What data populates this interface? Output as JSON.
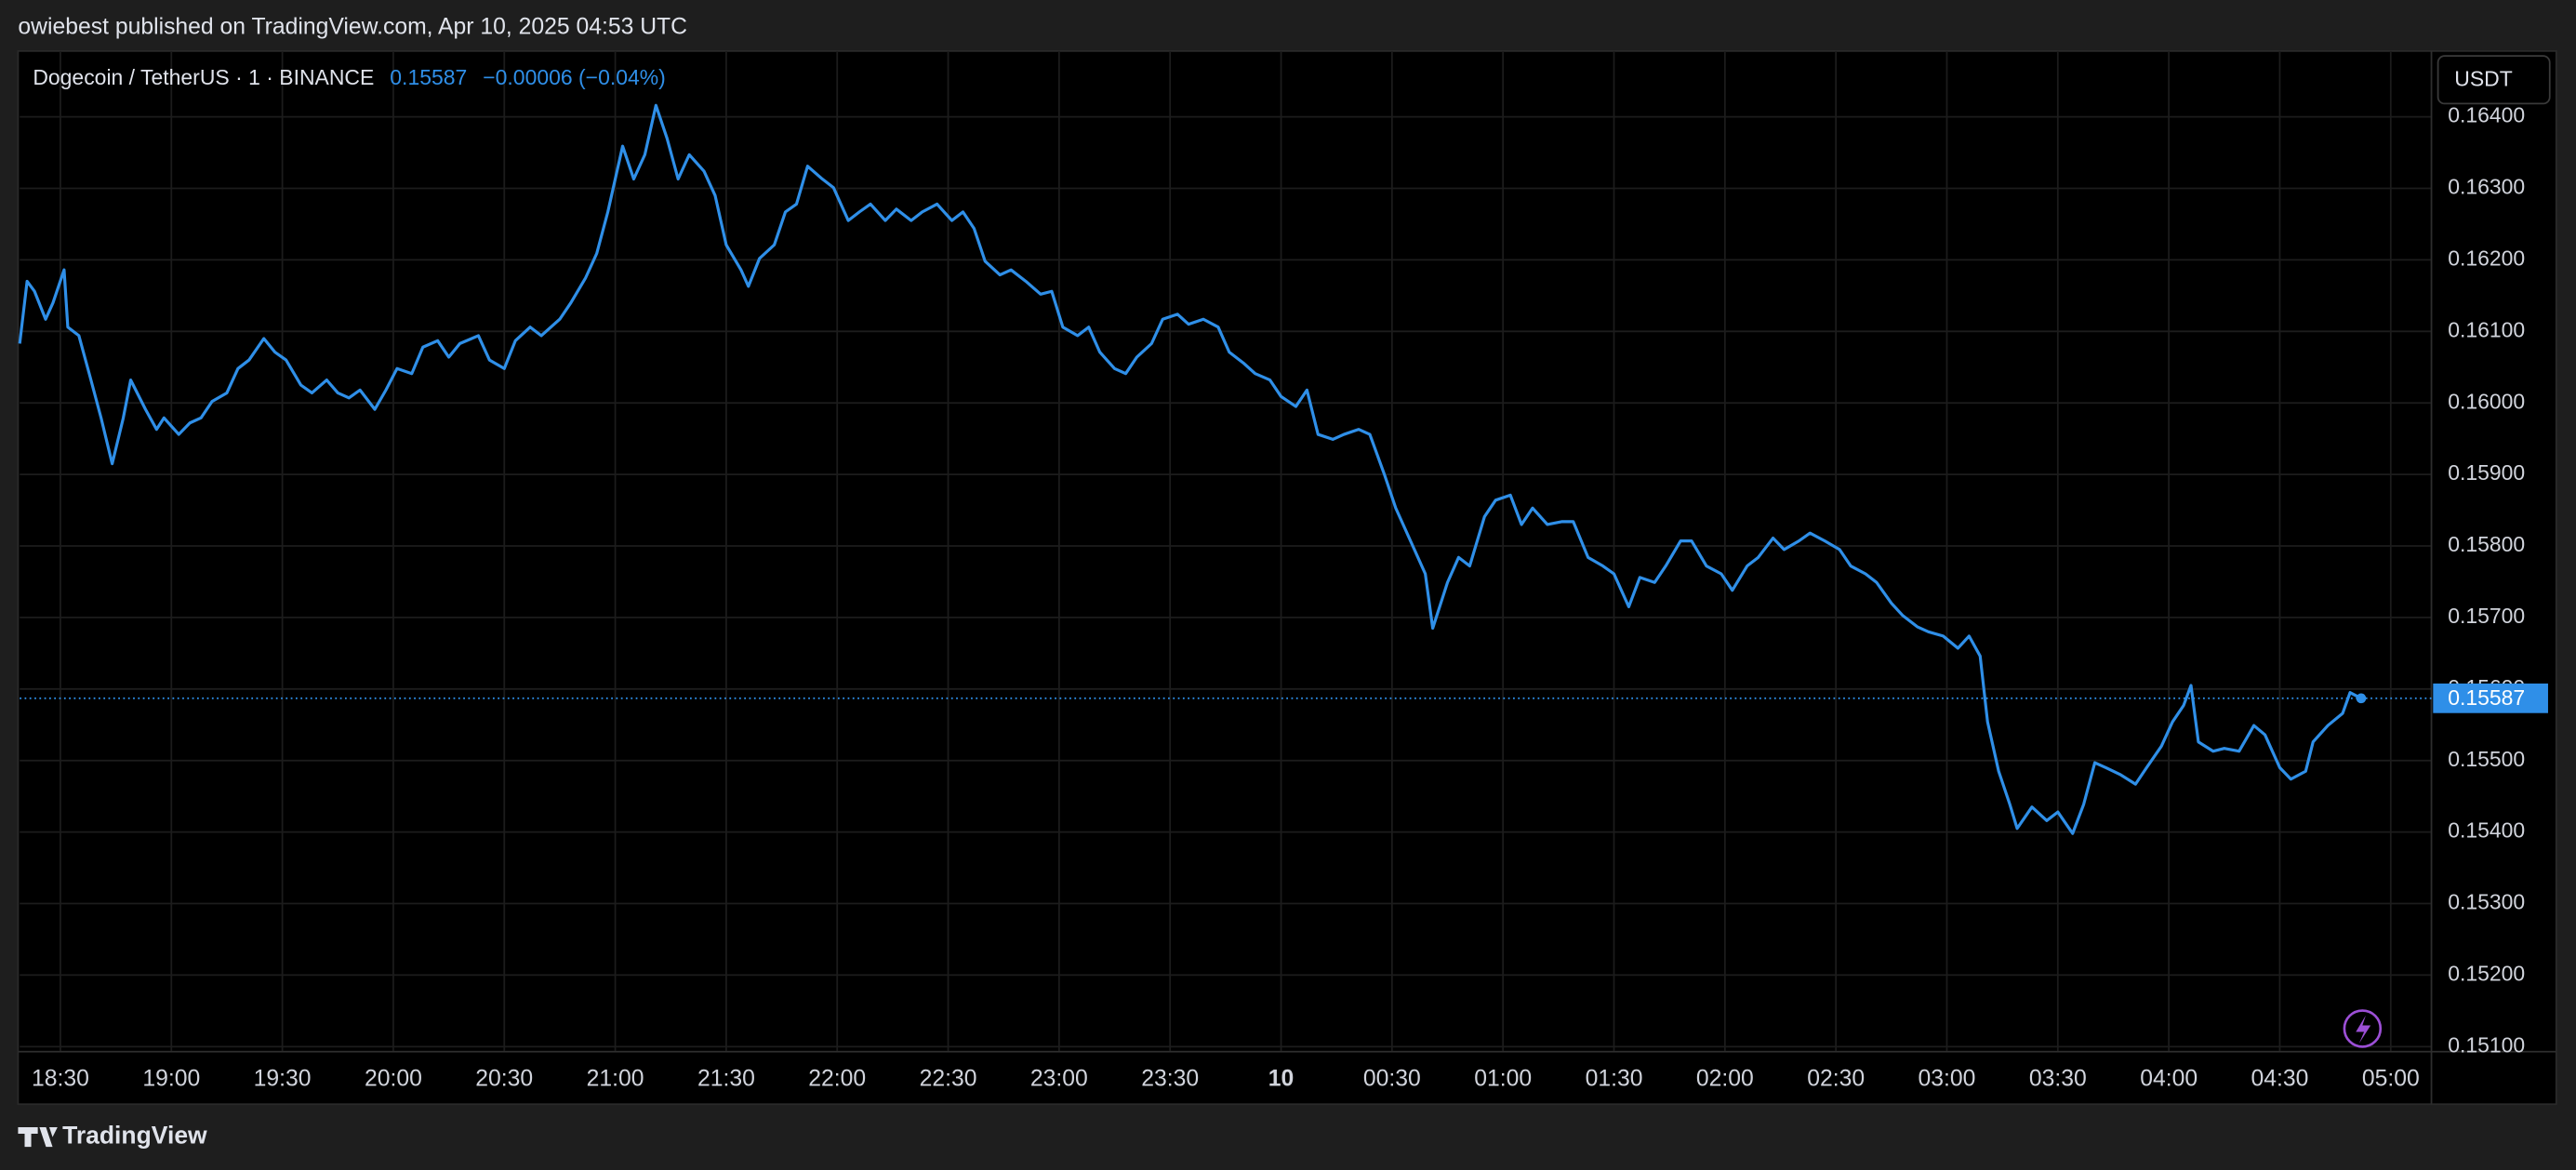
{
  "page": {
    "publisher_line": "owiebest published on TradingView.com, Apr 10, 2025 04:53 UTC",
    "brand": "TradingView"
  },
  "chart_data": {
    "type": "line",
    "title": "Dogecoin / TetherUS · 1 · BINANCE",
    "last_value": 0.15587,
    "change": "−0.00006 (−0.04%)",
    "currency": "USDT",
    "color": "#2f8fe8",
    "grid": true,
    "x": [
      "18:19",
      "18:21",
      "18:23",
      "18:26",
      "18:28",
      "18:31",
      "18:32",
      "18:35",
      "18:38",
      "18:41",
      "18:44",
      "18:47",
      "18:49",
      "18:53",
      "18:56",
      "18:58",
      "19:02",
      "19:05",
      "19:08",
      "19:11",
      "19:15",
      "19:18",
      "19:21",
      "19:25",
      "19:28",
      "19:31",
      "19:35",
      "19:38",
      "19:42",
      "19:45",
      "19:48",
      "19:51",
      "19:55",
      "19:58",
      "20:01",
      "20:05",
      "20:08",
      "20:12",
      "20:15",
      "20:18",
      "20:23",
      "20:26",
      "20:30",
      "20:33",
      "20:37",
      "20:40",
      "20:45",
      "20:48",
      "20:52",
      "20:55",
      "20:58",
      "21:02",
      "21:05",
      "21:08",
      "21:11",
      "21:14",
      "21:17",
      "21:20",
      "21:24",
      "21:27",
      "21:30",
      "21:34",
      "21:36",
      "21:39",
      "21:43",
      "21:46",
      "21:49",
      "21:52",
      "21:56",
      "21:59",
      "22:03",
      "22:06",
      "22:09",
      "22:13",
      "22:16",
      "22:20",
      "22:23",
      "22:27",
      "22:31",
      "22:34",
      "22:37",
      "22:40",
      "22:44",
      "22:47",
      "22:51",
      "22:55",
      "22:58",
      "23:01",
      "23:05",
      "23:08",
      "23:11",
      "23:15",
      "23:18",
      "23:21",
      "23:25",
      "23:28",
      "23:32",
      "23:35",
      "23:39",
      "23:43",
      "23:46",
      "23:50",
      "23:53",
      "23:57",
      "00:00",
      "00:04",
      "00:07",
      "00:10",
      "00:14",
      "00:17",
      "00:21",
      "00:24",
      "00:28",
      "00:31",
      "00:35",
      "00:39",
      "00:41",
      "00:45",
      "00:48",
      "00:51",
      "00:55",
      "00:58",
      "01:02",
      "01:05",
      "01:08",
      "01:12",
      "01:16",
      "01:19",
      "01:23",
      "01:27",
      "01:30",
      "01:34",
      "01:37",
      "01:41",
      "01:44",
      "01:48",
      "01:51",
      "01:55",
      "01:59",
      "02:02",
      "02:06",
      "02:09",
      "02:13",
      "02:16",
      "02:20",
      "02:23",
      "02:27",
      "02:31",
      "02:34",
      "02:38",
      "02:41",
      "02:45",
      "02:48",
      "02:52",
      "02:55",
      "02:59",
      "03:03",
      "03:06",
      "03:09",
      "03:11",
      "03:14",
      "03:17",
      "03:19",
      "03:23",
      "03:27",
      "03:30",
      "03:34",
      "03:37",
      "03:40",
      "03:43",
      "03:47",
      "03:51",
      "03:54",
      "03:58",
      "04:01",
      "04:04",
      "04:06",
      "04:08",
      "04:12",
      "04:15",
      "04:19",
      "04:23",
      "04:26",
      "04:30",
      "04:33",
      "04:37",
      "04:39",
      "04:43",
      "04:47",
      "04:49",
      "04:52"
    ],
    "values": [
      0.16083,
      0.1617,
      0.16156,
      0.16117,
      0.1614,
      0.16186,
      0.16106,
      0.16094,
      0.16037,
      0.15979,
      0.15915,
      0.15979,
      0.16032,
      0.15991,
      0.15963,
      0.15979,
      0.15956,
      0.15972,
      0.15979,
      0.16002,
      0.16014,
      0.16048,
      0.1606,
      0.1609,
      0.16071,
      0.1606,
      0.16025,
      0.16014,
      0.16032,
      0.16014,
      0.16007,
      0.16018,
      0.15991,
      0.16018,
      0.16048,
      0.16041,
      0.16078,
      0.16087,
      0.16064,
      0.16083,
      0.16094,
      0.1606,
      0.16048,
      0.16087,
      0.16106,
      0.16094,
      0.16117,
      0.1614,
      0.16175,
      0.16209,
      0.16267,
      0.16359,
      0.16313,
      0.16347,
      0.16416,
      0.1637,
      0.16313,
      0.16347,
      0.16324,
      0.1629,
      0.16221,
      0.16186,
      0.16163,
      0.16202,
      0.16221,
      0.16267,
      0.16278,
      0.16331,
      0.16313,
      0.16301,
      0.16255,
      0.16267,
      0.16278,
      0.16255,
      0.16271,
      0.16255,
      0.16267,
      0.16278,
      0.16255,
      0.16267,
      0.16244,
      0.16198,
      0.16179,
      0.16186,
      0.1617,
      0.16152,
      0.16156,
      0.16106,
      0.16094,
      0.16106,
      0.16071,
      0.16048,
      0.16041,
      0.16064,
      0.16083,
      0.16117,
      0.16124,
      0.1611,
      0.16117,
      0.16106,
      0.16071,
      0.16055,
      0.16041,
      0.16032,
      0.16009,
      0.15995,
      0.16018,
      0.15956,
      0.15949,
      0.15956,
      0.15963,
      0.15956,
      0.15899,
      0.15853,
      0.15807,
      0.15761,
      0.15685,
      0.15749,
      0.15784,
      0.15772,
      0.15841,
      0.15864,
      0.15871,
      0.1583,
      0.15853,
      0.1583,
      0.15834,
      0.15834,
      0.15784,
      0.15772,
      0.15761,
      0.15715,
      0.15756,
      0.15749,
      0.15772,
      0.15807,
      0.15807,
      0.15772,
      0.15761,
      0.15738,
      0.15772,
      0.15784,
      0.15811,
      0.15795,
      0.15807,
      0.15818,
      0.15807,
      0.15795,
      0.15772,
      0.15761,
      0.15749,
      0.1572,
      0.15703,
      0.15687,
      0.1568,
      0.15674,
      0.15657,
      0.15674,
      0.15646,
      0.15554,
      0.15485,
      0.15439,
      0.15405,
      0.15435,
      0.15416,
      0.15428,
      0.15398,
      0.15439,
      0.15497,
      0.1549,
      0.1548,
      0.15467,
      0.1549,
      0.1552,
      0.15554,
      0.15577,
      0.15605,
      0.15526,
      0.15513,
      0.15517,
      0.15513,
      0.15549,
      0.15536,
      0.1549,
      0.15474,
      0.15485,
      0.15526,
      0.15549,
      0.15566,
      0.15595,
      0.15587
    ],
    "xlim": [
      "18:19",
      "05:11"
    ],
    "xticks": [
      "18:30",
      "19:00",
      "19:30",
      "20:00",
      "20:30",
      "21:00",
      "21:30",
      "22:00",
      "22:30",
      "23:00",
      "23:30",
      {
        "value": "00:00",
        "label": "10"
      },
      "00:30",
      "01:00",
      "01:30",
      "02:00",
      "02:30",
      "03:00",
      "03:30",
      "04:00",
      "04:30",
      "05:00"
    ],
    "ylim": [
      0.15093,
      0.16492
    ],
    "yticks": [
      {
        "value": 0.151,
        "label": "0.15100"
      },
      {
        "value": 0.152,
        "label": "0.15200"
      },
      {
        "value": 0.153,
        "label": "0.15300"
      },
      {
        "value": 0.154,
        "label": "0.15400"
      },
      {
        "value": 0.155,
        "label": "0.15500"
      },
      {
        "value": 0.156,
        "label": "0.15600"
      },
      {
        "value": 0.157,
        "label": "0.15700"
      },
      {
        "value": 0.158,
        "label": "0.15800"
      },
      {
        "value": 0.159,
        "label": "0.15900"
      },
      {
        "value": 0.16,
        "label": "0.16000"
      },
      {
        "value": 0.161,
        "label": "0.16100"
      },
      {
        "value": 0.162,
        "label": "0.16200"
      },
      {
        "value": 0.163,
        "label": "0.16300"
      },
      {
        "value": 0.164,
        "label": "0.16400"
      }
    ]
  }
}
